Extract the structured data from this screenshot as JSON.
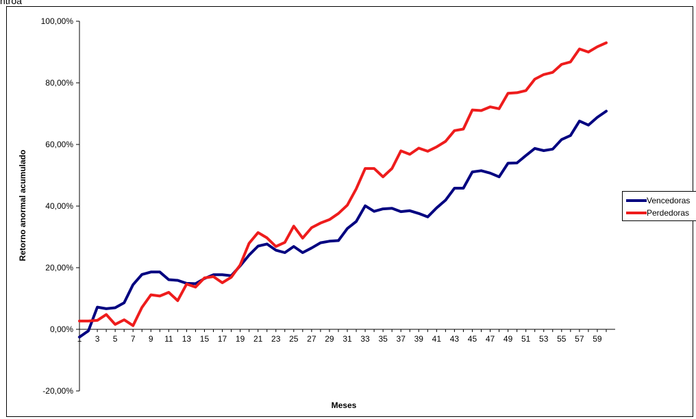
{
  "fragment_text": "ntroa",
  "chart_data": {
    "type": "line",
    "xlabel": "Meses",
    "ylabel": "Retorno anormal acumulado",
    "ylim": [
      -20,
      100
    ],
    "yticks": [
      -20,
      0,
      20,
      40,
      60,
      80,
      100
    ],
    "ytick_labels": [
      "-20,00%",
      "0,00%",
      "20,00%",
      "40,00%",
      "60,00%",
      "80,00%",
      "100,00%"
    ],
    "x": [
      1,
      2,
      3,
      4,
      5,
      6,
      7,
      8,
      9,
      10,
      11,
      12,
      13,
      14,
      15,
      16,
      17,
      18,
      19,
      20,
      21,
      22,
      23,
      24,
      25,
      26,
      27,
      28,
      29,
      30,
      31,
      32,
      33,
      34,
      35,
      36,
      37,
      38,
      39,
      40,
      41,
      42,
      43,
      44,
      45,
      46,
      47,
      48,
      49,
      50,
      51,
      52,
      53,
      54,
      55,
      56,
      57,
      58,
      59,
      60
    ],
    "xtick_labels": [
      "1",
      "3",
      "5",
      "7",
      "9",
      "11",
      "13",
      "15",
      "17",
      "19",
      "21",
      "23",
      "25",
      "27",
      "29",
      "31",
      "33",
      "35",
      "37",
      "39",
      "41",
      "43",
      "45",
      "47",
      "49",
      "51",
      "53",
      "55",
      "57",
      "59"
    ],
    "legend_position": "right",
    "series": [
      {
        "name": "Vencedoras",
        "color": "#000080",
        "values": [
          -2.5,
          -0.5,
          7.2,
          6.7,
          7.0,
          8.6,
          14.5,
          17.8,
          18.6,
          18.6,
          16.1,
          15.9,
          14.9,
          14.8,
          16.5,
          17.7,
          17.7,
          17.4,
          20.6,
          24.1,
          27.0,
          27.7,
          25.7,
          24.9,
          26.9,
          24.9,
          26.4,
          28.1,
          28.6,
          28.8,
          32.7,
          35.0,
          40.1,
          38.3,
          39.1,
          39.3,
          38.2,
          38.5,
          37.6,
          36.5,
          39.4,
          41.9,
          45.8,
          45.8,
          51.1,
          51.5,
          50.7,
          49.5,
          53.9,
          54.0,
          56.4,
          58.7,
          58.0,
          58.5,
          61.6,
          62.9,
          67.6,
          66.3,
          68.8,
          70.8
        ]
      },
      {
        "name": "Perdedoras",
        "color": "#ee1c1c",
        "values": [
          2.7,
          2.7,
          2.9,
          4.8,
          1.6,
          3.1,
          1.2,
          7.1,
          11.2,
          10.8,
          12.0,
          9.3,
          14.7,
          13.7,
          16.7,
          17.1,
          15.1,
          16.9,
          20.9,
          27.9,
          31.4,
          29.7,
          26.9,
          28.2,
          33.5,
          29.6,
          33.0,
          34.5,
          35.6,
          37.6,
          40.3,
          45.6,
          52.2,
          52.2,
          49.5,
          52.2,
          57.9,
          56.8,
          58.8,
          57.8,
          59.2,
          61.0,
          64.5,
          65.0,
          71.2,
          71.0,
          72.2,
          71.6,
          76.6,
          76.8,
          77.5,
          81.2,
          82.7,
          83.4,
          86.0,
          86.8,
          91.0,
          90.0,
          91.7,
          93.0
        ]
      }
    ]
  }
}
